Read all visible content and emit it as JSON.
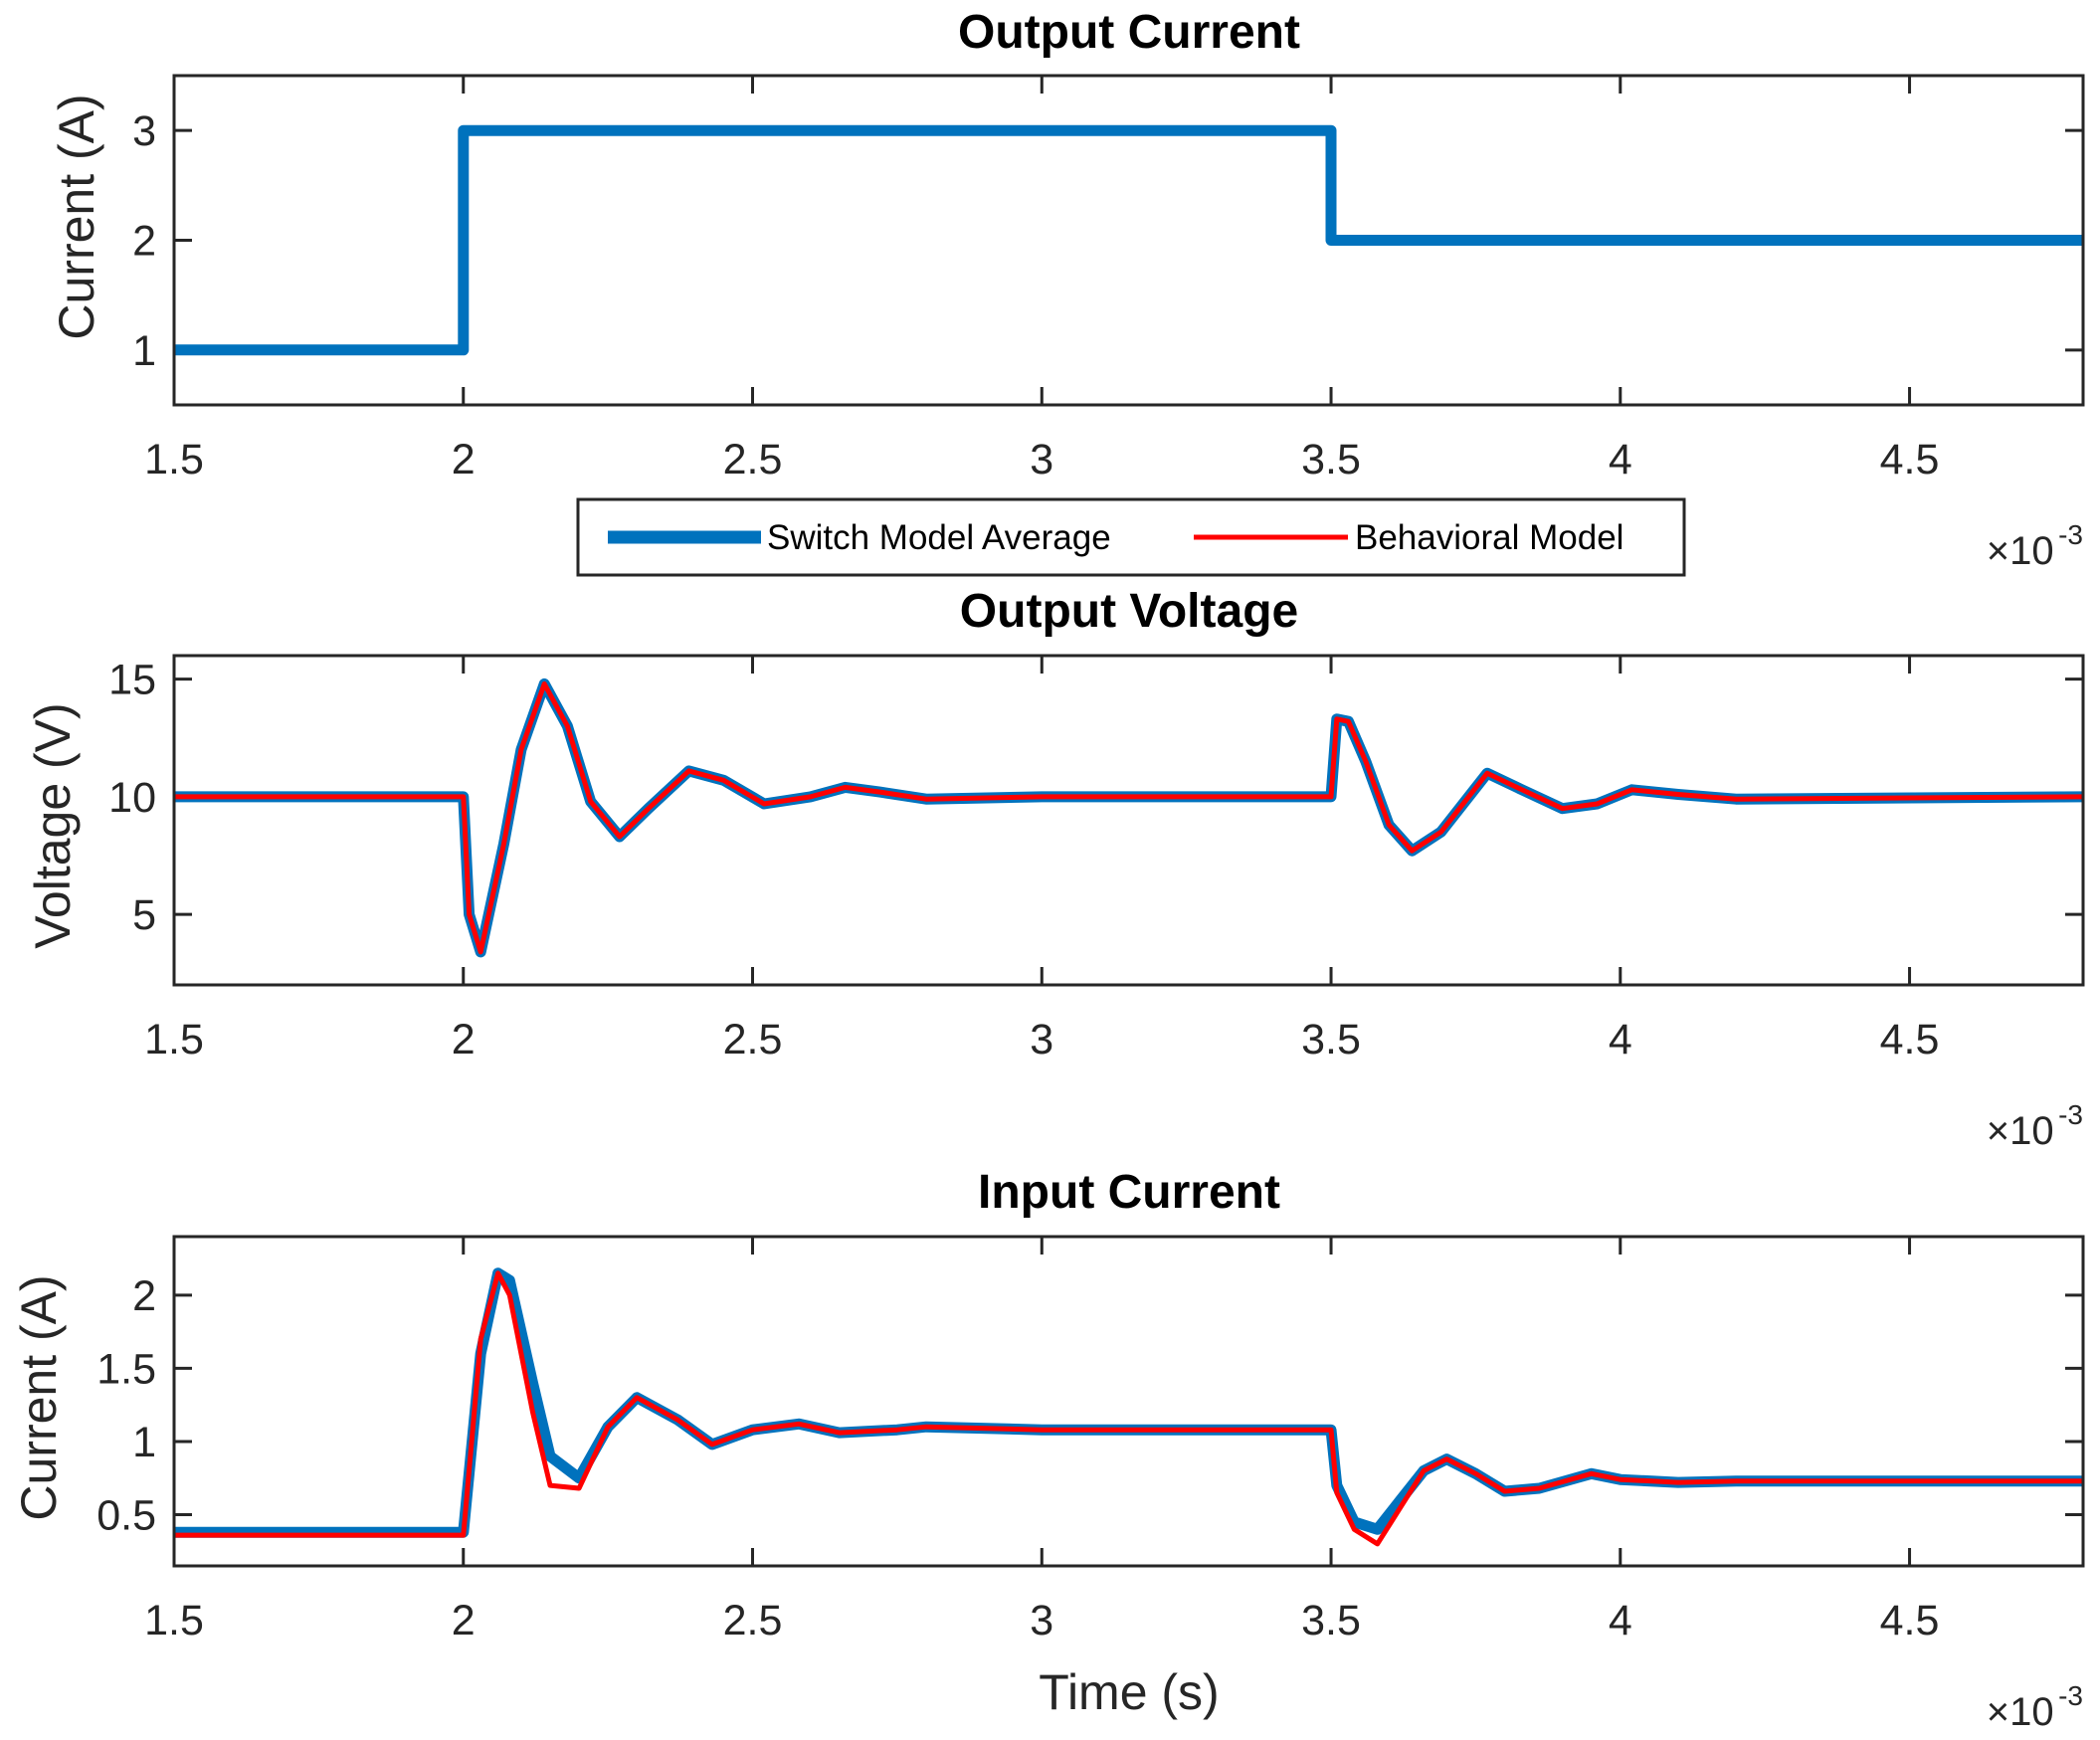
{
  "chart_data": {
    "colors": {
      "switch": "#0072BD",
      "behavioral": "#FF0000",
      "axes": "#262626"
    },
    "legend": {
      "placement": "between-top-and-middle-subplots",
      "entries": [
        {
          "name": "Switch Model Average",
          "color": "#0072BD"
        },
        {
          "name": "Behavioral Model",
          "color": "#FF0000"
        }
      ]
    },
    "subplots": [
      {
        "type": "line",
        "title": "Output Current",
        "xlabel": "",
        "ylabel": "Current (A)",
        "xlim": [
          0.0015,
          0.0048
        ],
        "ylim": [
          0.5,
          3.5
        ],
        "x_exponent_label": {
          "times": "×10",
          "exp": "-3"
        },
        "xticks": [
          {
            "value": 0.0015,
            "label": "1.5"
          },
          {
            "value": 0.002,
            "label": "2"
          },
          {
            "value": 0.0025,
            "label": "2.5"
          },
          {
            "value": 0.003,
            "label": "3"
          },
          {
            "value": 0.0035,
            "label": "3.5"
          },
          {
            "value": 0.004,
            "label": "4"
          },
          {
            "value": 0.0045,
            "label": "4.5"
          }
        ],
        "yticks": [
          {
            "value": 1,
            "label": "1"
          },
          {
            "value": 2,
            "label": "2"
          },
          {
            "value": 3,
            "label": "3"
          }
        ],
        "series": [
          {
            "name": "Switch Model Average",
            "x": [
              0.0015,
              0.002,
              0.002,
              0.0035,
              0.0035,
              0.0048
            ],
            "y": [
              1,
              1,
              3,
              3,
              2,
              2
            ]
          }
        ]
      },
      {
        "type": "line",
        "title": "Output Voltage",
        "xlabel": "",
        "ylabel": "Voltage (V)",
        "xlim": [
          0.0015,
          0.0048
        ],
        "ylim": [
          2,
          16
        ],
        "x_exponent_label": {
          "times": "×10",
          "exp": "-3"
        },
        "xticks": [
          {
            "value": 0.0015,
            "label": "1.5"
          },
          {
            "value": 0.002,
            "label": "2"
          },
          {
            "value": 0.0025,
            "label": "2.5"
          },
          {
            "value": 0.003,
            "label": "3"
          },
          {
            "value": 0.0035,
            "label": "3.5"
          },
          {
            "value": 0.004,
            "label": "4"
          },
          {
            "value": 0.0045,
            "label": "4.5"
          }
        ],
        "yticks": [
          {
            "value": 5,
            "label": "5"
          },
          {
            "value": 10,
            "label": "10"
          },
          {
            "value": 15,
            "label": "15"
          }
        ],
        "series": [
          {
            "name": "Switch Model Average",
            "x": [
              0.0015,
              0.002,
              0.00201,
              0.00203,
              0.00207,
              0.0021,
              0.00214,
              0.00218,
              0.00222,
              0.00227,
              0.00232,
              0.00239,
              0.00245,
              0.00252,
              0.0026,
              0.00266,
              0.00272,
              0.0028,
              0.003,
              0.0035,
              0.00351,
              0.00353,
              0.00356,
              0.0036,
              0.00364,
              0.00369,
              0.00377,
              0.00383,
              0.0039,
              0.00396,
              0.00402,
              0.0041,
              0.0042,
              0.0048
            ],
            "y": [
              10,
              10,
              5,
              3.4,
              8,
              12,
              14.8,
              13,
              9.8,
              8.3,
              9.5,
              11.1,
              10.7,
              9.7,
              10,
              10.4,
              10.2,
              9.9,
              10,
              10,
              13.3,
              13.2,
              11.5,
              8.8,
              7.7,
              8.5,
              11,
              10.3,
              9.5,
              9.7,
              10.3,
              10.1,
              9.9,
              10
            ]
          },
          {
            "name": "Behavioral Model",
            "x": [
              0.0015,
              0.002,
              0.00201,
              0.00203,
              0.00207,
              0.0021,
              0.00214,
              0.00218,
              0.00222,
              0.00227,
              0.00232,
              0.00239,
              0.00245,
              0.00252,
              0.0026,
              0.00266,
              0.00272,
              0.0028,
              0.003,
              0.0035,
              0.00351,
              0.00353,
              0.00356,
              0.0036,
              0.00364,
              0.00369,
              0.00377,
              0.00383,
              0.0039,
              0.00396,
              0.00402,
              0.0041,
              0.0042,
              0.0048
            ],
            "y": [
              10,
              10,
              5,
              3.4,
              8,
              12,
              14.8,
              13,
              9.8,
              8.3,
              9.5,
              11.1,
              10.7,
              9.7,
              10,
              10.4,
              10.2,
              9.9,
              10,
              10,
              13.3,
              13.2,
              11.5,
              8.8,
              7.7,
              8.5,
              11,
              10.3,
              9.5,
              9.7,
              10.3,
              10.1,
              9.9,
              10
            ]
          }
        ]
      },
      {
        "type": "line",
        "title": "Input Current",
        "xlabel": "Time (s)",
        "ylabel": "Current (A)",
        "xlim": [
          0.0015,
          0.0048
        ],
        "ylim": [
          0.15,
          2.4
        ],
        "x_exponent_label": {
          "times": "×10",
          "exp": "-3"
        },
        "xticks": [
          {
            "value": 0.0015,
            "label": "1.5"
          },
          {
            "value": 0.002,
            "label": "2"
          },
          {
            "value": 0.0025,
            "label": "2.5"
          },
          {
            "value": 0.003,
            "label": "3"
          },
          {
            "value": 0.0035,
            "label": "3.5"
          },
          {
            "value": 0.004,
            "label": "4"
          },
          {
            "value": 0.0045,
            "label": "4.5"
          }
        ],
        "yticks": [
          {
            "value": 0.5,
            "label": "0.5"
          },
          {
            "value": 1,
            "label": "1"
          },
          {
            "value": 1.5,
            "label": "1.5"
          },
          {
            "value": 2,
            "label": "2"
          }
        ],
        "series": [
          {
            "name": "Switch Model Average",
            "x": [
              0.0015,
              0.002,
              0.00203,
              0.00206,
              0.00208,
              0.00212,
              0.00215,
              0.0022,
              0.00225,
              0.0023,
              0.00237,
              0.00243,
              0.0025,
              0.00258,
              0.00265,
              0.00275,
              0.0028,
              0.003,
              0.0035,
              0.00351,
              0.00354,
              0.00358,
              0.00362,
              0.00366,
              0.0037,
              0.00375,
              0.0038,
              0.00386,
              0.00395,
              0.004,
              0.0041,
              0.0042,
              0.0048
            ],
            "y": [
              0.38,
              0.38,
              1.6,
              2.15,
              2.1,
              1.4,
              0.9,
              0.75,
              1.1,
              1.3,
              1.15,
              0.98,
              1.08,
              1.12,
              1.06,
              1.08,
              1.1,
              1.08,
              1.08,
              0.7,
              0.45,
              0.4,
              0.6,
              0.8,
              0.88,
              0.78,
              0.66,
              0.68,
              0.78,
              0.74,
              0.72,
              0.73,
              0.73
            ]
          },
          {
            "name": "Behavioral Model",
            "x": [
              0.0015,
              0.002,
              0.00203,
              0.00206,
              0.00208,
              0.00212,
              0.00215,
              0.0022,
              0.00225,
              0.0023,
              0.00237,
              0.00243,
              0.0025,
              0.00258,
              0.00265,
              0.00275,
              0.0028,
              0.003,
              0.0035,
              0.00351,
              0.00354,
              0.00358,
              0.00362,
              0.00366,
              0.0037,
              0.00375,
              0.0038,
              0.00386,
              0.00395,
              0.004,
              0.0041,
              0.0042,
              0.0048
            ],
            "y": [
              0.36,
              0.36,
              1.7,
              2.15,
              2.0,
              1.2,
              0.7,
              0.68,
              1.1,
              1.3,
              1.15,
              0.98,
              1.08,
              1.12,
              1.06,
              1.08,
              1.1,
              1.08,
              1.08,
              0.65,
              0.4,
              0.3,
              0.55,
              0.8,
              0.88,
              0.78,
              0.66,
              0.68,
              0.78,
              0.74,
              0.72,
              0.73,
              0.73
            ]
          }
        ]
      }
    ]
  }
}
